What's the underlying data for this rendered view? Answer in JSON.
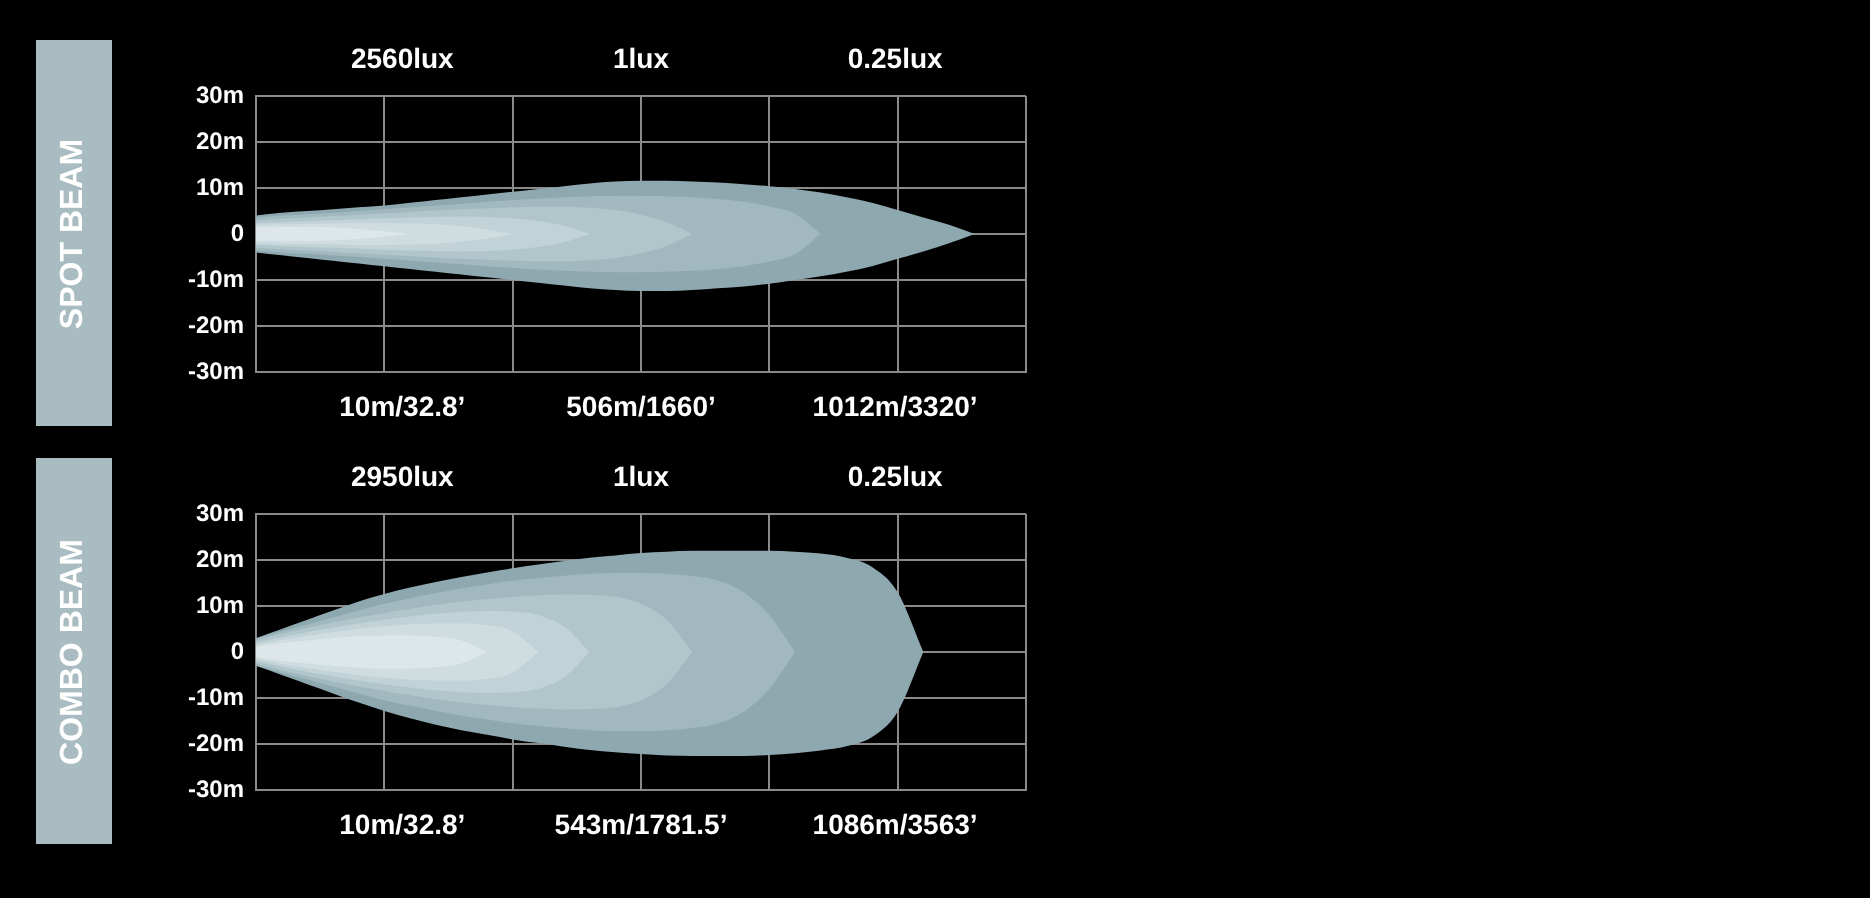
{
  "chart_data": [
    {
      "type": "area",
      "title": "SPOT BEAM",
      "categories": [
        null,
        null,
        null,
        null,
        null,
        null,
        null,
        null,
        null,
        null,
        null,
        null,
        null,
        null,
        null,
        null,
        null,
        null,
        null,
        null,
        null,
        null,
        null,
        null,
        null,
        null,
        null,
        null,
        null,
        null,
        null
      ],
      "series": [
        {
          "color": "#8ea8af",
          "values": [
            4,
            4.6,
            5,
            5.4,
            5.8,
            6.2,
            6.8,
            7.4,
            8,
            8.6,
            9.2,
            9.8,
            10.4,
            11,
            11.4,
            11.6,
            11.6,
            11.4,
            11.2,
            10.8,
            10.4,
            9.8,
            9,
            8,
            6.8,
            5.2,
            3.6,
            2,
            0,
            null,
            null
          ]
        },
        {
          "color": "#8ea8af",
          "values": [
            -4,
            -4.6,
            -5.2,
            -5.8,
            -6.4,
            -7,
            -7.6,
            -8.2,
            -8.8,
            -9.4,
            -10,
            -10.6,
            -11.2,
            -11.8,
            -12.2,
            -12.4,
            -12.4,
            -12.2,
            -11.8,
            -11.4,
            -10.8,
            -10,
            -9.2,
            -8.2,
            -7,
            -5.4,
            -3.8,
            -2,
            0,
            null,
            null
          ]
        },
        {
          "color": "#a0b8be",
          "values": [
            3.6,
            4,
            4.3,
            4.6,
            5,
            5.4,
            5.8,
            6.2,
            6.6,
            7,
            7.4,
            7.7,
            8,
            8.2,
            8.3,
            8.3,
            8.2,
            8,
            7.6,
            7,
            6,
            4.4,
            0,
            null,
            null,
            null,
            null,
            null,
            null,
            null,
            null
          ]
        },
        {
          "color": "#a0b8be",
          "values": [
            -3.6,
            -4,
            -4.3,
            -4.6,
            -5,
            -5.4,
            -5.8,
            -6.2,
            -6.6,
            -7,
            -7.4,
            -7.7,
            -8,
            -8.2,
            -8.3,
            -8.3,
            -8.2,
            -8,
            -7.6,
            -7,
            -6,
            -4.4,
            0,
            null,
            null,
            null,
            null,
            null,
            null,
            null,
            null
          ]
        },
        {
          "color": "#b1c6cb",
          "values": [
            3,
            3.3,
            3.6,
            3.9,
            4.2,
            4.5,
            4.8,
            5.1,
            5.4,
            5.6,
            5.8,
            5.9,
            5.9,
            5.7,
            5.2,
            4.2,
            2.6,
            0,
            null,
            null,
            null,
            null,
            null,
            null,
            null,
            null,
            null,
            null,
            null,
            null,
            null
          ]
        },
        {
          "color": "#b1c6cb",
          "values": [
            -3,
            -3.3,
            -3.6,
            -3.9,
            -4.2,
            -4.5,
            -4.8,
            -5.1,
            -5.4,
            -5.6,
            -5.8,
            -5.9,
            -5.9,
            -5.7,
            -5.2,
            -4.2,
            -2.6,
            0,
            null,
            null,
            null,
            null,
            null,
            null,
            null,
            null,
            null,
            null,
            null,
            null,
            null
          ]
        },
        {
          "color": "#c1d3d7",
          "values": [
            2.4,
            2.6,
            2.8,
            3,
            3.2,
            3.4,
            3.6,
            3.7,
            3.8,
            3.7,
            3.4,
            2.8,
            1.8,
            0,
            null,
            null,
            null,
            null,
            null,
            null,
            null,
            null,
            null,
            null,
            null,
            null,
            null,
            null,
            null,
            null,
            null
          ]
        },
        {
          "color": "#c1d3d7",
          "values": [
            -2.4,
            -2.6,
            -2.8,
            -3,
            -3.2,
            -3.4,
            -3.6,
            -3.7,
            -3.8,
            -3.7,
            -3.4,
            -2.8,
            -1.8,
            0,
            null,
            null,
            null,
            null,
            null,
            null,
            null,
            null,
            null,
            null,
            null,
            null,
            null,
            null,
            null,
            null,
            null
          ]
        },
        {
          "color": "#cfdde0",
          "values": [
            2,
            2.1,
            2.2,
            2.3,
            2.4,
            2.4,
            2.3,
            2.1,
            1.7,
            1,
            0,
            null,
            null,
            null,
            null,
            null,
            null,
            null,
            null,
            null,
            null,
            null,
            null,
            null,
            null,
            null,
            null,
            null,
            null,
            null,
            null
          ]
        },
        {
          "color": "#cfdde0",
          "values": [
            -2,
            -2.1,
            -2.2,
            -2.3,
            -2.4,
            -2.4,
            -2.3,
            -2.1,
            -1.7,
            -1,
            0,
            null,
            null,
            null,
            null,
            null,
            null,
            null,
            null,
            null,
            null,
            null,
            null,
            null,
            null,
            null,
            null,
            null,
            null,
            null,
            null
          ]
        },
        {
          "color": "#dde7e9",
          "values": [
            1.4,
            1.5,
            1.5,
            1.4,
            1.1,
            0.6,
            0,
            null,
            null,
            null,
            null,
            null,
            null,
            null,
            null,
            null,
            null,
            null,
            null,
            null,
            null,
            null,
            null,
            null,
            null,
            null,
            null,
            null,
            null,
            null,
            null
          ]
        },
        {
          "color": "#dde7e9",
          "values": [
            -1.4,
            -1.5,
            -1.5,
            -1.4,
            -1.1,
            -0.6,
            0,
            null,
            null,
            null,
            null,
            null,
            null,
            null,
            null,
            null,
            null,
            null,
            null,
            null,
            null,
            null,
            null,
            null,
            null,
            null,
            null,
            null,
            null,
            null,
            null
          ]
        }
      ],
      "ylim": [
        -30,
        30
      ],
      "yticks": [
        {
          "value": -30,
          "label": "-30m"
        },
        {
          "value": -20,
          "label": "-20m"
        },
        {
          "value": -10,
          "label": "-10m"
        },
        0,
        {
          "value": 10,
          "label": "10m"
        },
        {
          "value": 20,
          "label": "20m"
        },
        {
          "value": 30,
          "label": "30m"
        }
      ],
      "grid": true,
      "annotations": [
        "2560lux",
        "1lux",
        "0.25lux",
        "10m/32.8’",
        "506m/1660’",
        "1012m/3320’"
      ]
    },
    {
      "type": "area",
      "title": "COMBO BEAM",
      "categories": [
        null,
        null,
        null,
        null,
        null,
        null,
        null,
        null,
        null,
        null,
        null,
        null,
        null,
        null,
        null,
        null,
        null,
        null,
        null,
        null,
        null,
        null,
        null,
        null,
        null,
        null,
        null,
        null,
        null,
        null,
        null
      ],
      "series": [
        {
          "color": "#8ea8af",
          "values": [
            3,
            5,
            7,
            9,
            11,
            12.6,
            14,
            15.2,
            16.3,
            17.3,
            18.2,
            19,
            19.8,
            20.5,
            21,
            21.5,
            21.8,
            22,
            22,
            22,
            22,
            21.8,
            21.4,
            20.5,
            18.5,
            13,
            0,
            null,
            null,
            null,
            null
          ]
        },
        {
          "color": "#8ea8af",
          "values": [
            -3,
            -5,
            -7,
            -9,
            -11,
            -12.8,
            -14.4,
            -15.8,
            -17,
            -18,
            -19,
            -19.8,
            -20.6,
            -21.3,
            -21.8,
            -22.2,
            -22.5,
            -22.6,
            -22.6,
            -22.6,
            -22.4,
            -22,
            -21.4,
            -20.5,
            -18.5,
            -13,
            0,
            null,
            null,
            null,
            null
          ]
        },
        {
          "color": "#a0b8be",
          "values": [
            3,
            4.5,
            6,
            7.5,
            9,
            10.5,
            11.7,
            12.8,
            13.8,
            14.7,
            15.5,
            16.1,
            16.6,
            17,
            17.2,
            17.2,
            17,
            16.5,
            15.5,
            13,
            8,
            0,
            null,
            null,
            null,
            null,
            null,
            null,
            null,
            null,
            null
          ]
        },
        {
          "color": "#a0b8be",
          "values": [
            -3,
            -4.5,
            -6,
            -7.5,
            -9,
            -10.5,
            -11.7,
            -12.8,
            -13.8,
            -14.7,
            -15.5,
            -16.1,
            -16.6,
            -17,
            -17.2,
            -17.2,
            -17,
            -16.5,
            -15.5,
            -13,
            -8,
            0,
            null,
            null,
            null,
            null,
            null,
            null,
            null,
            null,
            null
          ]
        },
        {
          "color": "#b1c6cb",
          "values": [
            2.5,
            4,
            5.2,
            6.4,
            7.5,
            8.5,
            9.4,
            10.2,
            10.9,
            11.5,
            12,
            12.3,
            12.5,
            12.4,
            12,
            10.5,
            7,
            0,
            null,
            null,
            null,
            null,
            null,
            null,
            null,
            null,
            null,
            null,
            null,
            null,
            null
          ]
        },
        {
          "color": "#b1c6cb",
          "values": [
            -2.5,
            -4,
            -5.2,
            -6.4,
            -7.5,
            -8.5,
            -9.4,
            -10.2,
            -10.9,
            -11.5,
            -12,
            -12.3,
            -12.5,
            -12.4,
            -12,
            -10.5,
            -7,
            0,
            null,
            null,
            null,
            null,
            null,
            null,
            null,
            null,
            null,
            null,
            null,
            null,
            null
          ]
        },
        {
          "color": "#c1d3d7",
          "values": [
            2,
            3.2,
            4.3,
            5.3,
            6.2,
            7,
            7.7,
            8.3,
            8.7,
            8.9,
            8.8,
            8,
            5.5,
            0,
            null,
            null,
            null,
            null,
            null,
            null,
            null,
            null,
            null,
            null,
            null,
            null,
            null,
            null,
            null,
            null,
            null
          ]
        },
        {
          "color": "#c1d3d7",
          "values": [
            -2,
            -3.2,
            -4.3,
            -5.3,
            -6.2,
            -7,
            -7.7,
            -8.3,
            -8.7,
            -8.9,
            -8.8,
            -8,
            -5.5,
            0,
            null,
            null,
            null,
            null,
            null,
            null,
            null,
            null,
            null,
            null,
            null,
            null,
            null,
            null,
            null,
            null,
            null
          ]
        },
        {
          "color": "#cfdde0",
          "values": [
            1.6,
            2.6,
            3.5,
            4.3,
            5,
            5.6,
            6,
            6.2,
            6.2,
            5.8,
            4.5,
            0,
            null,
            null,
            null,
            null,
            null,
            null,
            null,
            null,
            null,
            null,
            null,
            null,
            null,
            null,
            null,
            null,
            null,
            null,
            null
          ]
        },
        {
          "color": "#cfdde0",
          "values": [
            -1.6,
            -2.6,
            -3.5,
            -4.3,
            -5,
            -5.6,
            -6,
            -6.2,
            -6.2,
            -5.8,
            -4.5,
            0,
            null,
            null,
            null,
            null,
            null,
            null,
            null,
            null,
            null,
            null,
            null,
            null,
            null,
            null,
            null,
            null,
            null,
            null,
            null
          ]
        },
        {
          "color": "#dde7e9",
          "values": [
            1.2,
            1.9,
            2.5,
            3,
            3.4,
            3.6,
            3.6,
            3.3,
            2.5,
            0,
            null,
            null,
            null,
            null,
            null,
            null,
            null,
            null,
            null,
            null,
            null,
            null,
            null,
            null,
            null,
            null,
            null,
            null,
            null,
            null,
            null
          ]
        },
        {
          "color": "#dde7e9",
          "values": [
            -1.2,
            -1.9,
            -2.5,
            -3,
            -3.4,
            -3.6,
            -3.6,
            -3.3,
            -2.5,
            0,
            null,
            null,
            null,
            null,
            null,
            null,
            null,
            null,
            null,
            null,
            null,
            null,
            null,
            null,
            null,
            null,
            null,
            null,
            null,
            null,
            null
          ]
        }
      ],
      "ylim": [
        -30,
        30
      ],
      "yticks": [
        {
          "value": -30,
          "label": "-30m"
        },
        {
          "value": -20,
          "label": "-20m"
        },
        {
          "value": -10,
          "label": "-10m"
        },
        0,
        {
          "value": 10,
          "label": "10m"
        },
        {
          "value": 20,
          "label": "20m"
        },
        {
          "value": 30,
          "label": "30m"
        }
      ],
      "grid": true,
      "annotations": [
        "2950lux",
        "1lux",
        "0.25lux",
        "10m/32.8’",
        "543m/1781.5’",
        "1086m/3563’"
      ]
    }
  ]
}
